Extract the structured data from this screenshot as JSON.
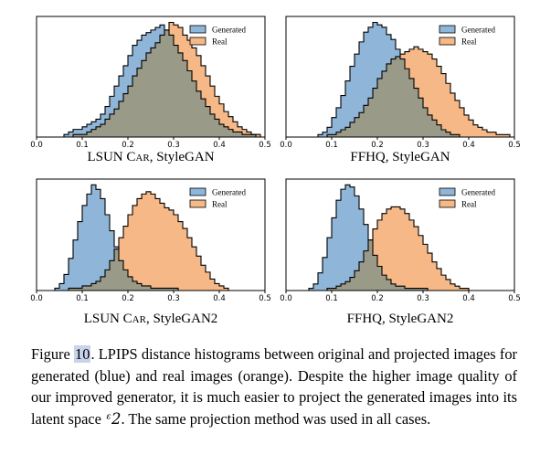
{
  "colors": {
    "generated": "#8fb6d8",
    "real": "#f5b886",
    "overlap": "#9a9a88",
    "edge": "#000000"
  },
  "legend": {
    "generated": "Generated",
    "real": "Real"
  },
  "caption": {
    "figure_label": "Figure",
    "figure_number": "10",
    "text": ". LPIPS distance histograms between original and projected images for generated (blue) and real images (orange). Despite the higher image quality of our improved generator, it is much easier to project the generated images into its latent space ",
    "math_symbol": "ᵋ2",
    "text_end": ". The same projection method was used in all cases."
  },
  "chart_data": [
    {
      "type": "bar",
      "subtitle_pre": "LSUN ",
      "subtitle_sc": "Car",
      "subtitle_post": ", StyleGAN",
      "xlim": [
        0,
        0.5
      ],
      "xticks": [
        "0.0",
        "0.1",
        "0.2",
        "0.3",
        "0.4",
        "0.5"
      ],
      "bin_width": 0.01,
      "x_start": 0.04,
      "series": [
        {
          "name": "Generated",
          "values": [
            0,
            0,
            1,
            2,
            3,
            3,
            4,
            5,
            6,
            7,
            9,
            12,
            16,
            20,
            24,
            28,
            32,
            36,
            38,
            40,
            41,
            42,
            43,
            44,
            42,
            40,
            36,
            33,
            30,
            26,
            22,
            18,
            15,
            12,
            9,
            7,
            5,
            4,
            3,
            2,
            2,
            1,
            1,
            1,
            0,
            0
          ]
        },
        {
          "name": "Real",
          "values": [
            0,
            0,
            0,
            0,
            1,
            1,
            1,
            2,
            3,
            4,
            5,
            7,
            9,
            11,
            14,
            17,
            20,
            24,
            27,
            30,
            33,
            35,
            37,
            40,
            42,
            45,
            44,
            43,
            40,
            38,
            35,
            32,
            28,
            24,
            20,
            16,
            13,
            10,
            8,
            6,
            4,
            3,
            2,
            1,
            1,
            0
          ]
        }
      ]
    },
    {
      "type": "bar",
      "subtitle_pre": "FFHQ, StyleGAN",
      "subtitle_sc": "",
      "subtitle_post": "",
      "xlim": [
        0,
        0.5
      ],
      "xticks": [
        "0.0",
        "0.1",
        "0.2",
        "0.3",
        "0.4",
        "0.5"
      ],
      "bin_width": 0.01,
      "x_start": 0.04,
      "series": [
        {
          "name": "Generated",
          "values": [
            0,
            0,
            0,
            1,
            2,
            4,
            8,
            12,
            17,
            23,
            29,
            34,
            39,
            43,
            45,
            47,
            46,
            45,
            42,
            40,
            36,
            32,
            28,
            24,
            20,
            16,
            12,
            9,
            7,
            5,
            3,
            2,
            1,
            1,
            0,
            0,
            0,
            0,
            0,
            0,
            0,
            0,
            0,
            0,
            0,
            0
          ]
        },
        {
          "name": "Real",
          "values": [
            0,
            0,
            0,
            0,
            0,
            1,
            1,
            2,
            3,
            4,
            6,
            8,
            10,
            13,
            16,
            20,
            24,
            27,
            30,
            32,
            33,
            34,
            35,
            36,
            37,
            36,
            35,
            34,
            32,
            29,
            26,
            22,
            18,
            15,
            12,
            9,
            7,
            5,
            4,
            3,
            2,
            2,
            1,
            1,
            1,
            0
          ]
        }
      ]
    },
    {
      "type": "bar",
      "subtitle_pre": "LSUN ",
      "subtitle_sc": "Car",
      "subtitle_post": ", StyleGAN2",
      "xlim": [
        0,
        0.5
      ],
      "xticks": [
        "0.0",
        "0.1",
        "0.2",
        "0.3",
        "0.4",
        "0.5"
      ],
      "bin_width": 0.01,
      "x_start": 0.03,
      "series": [
        {
          "name": "Generated",
          "values": [
            0,
            1,
            3,
            7,
            14,
            22,
            30,
            37,
            42,
            46,
            44,
            40,
            33,
            26,
            19,
            13,
            9,
            6,
            4,
            3,
            2,
            2,
            1,
            1,
            1,
            1,
            1,
            1,
            0,
            0,
            0,
            0,
            0,
            0,
            0,
            0,
            0,
            0,
            0,
            0
          ]
        },
        {
          "name": "Real",
          "values": [
            0,
            0,
            0,
            0,
            1,
            1,
            1,
            2,
            2,
            3,
            4,
            6,
            9,
            13,
            18,
            23,
            28,
            33,
            37,
            40,
            42,
            43,
            42,
            40,
            38,
            36,
            35,
            33,
            30,
            27,
            23,
            19,
            15,
            11,
            8,
            5,
            3,
            2,
            1,
            0
          ]
        }
      ]
    },
    {
      "type": "bar",
      "subtitle_pre": "FFHQ, StyleGAN2",
      "subtitle_sc": "",
      "subtitle_post": "",
      "xlim": [
        0,
        0.5
      ],
      "xticks": [
        "0.0",
        "0.1",
        "0.2",
        "0.3",
        "0.4",
        "0.5"
      ],
      "bin_width": 0.01,
      "x_start": 0.04,
      "series": [
        {
          "name": "Generated",
          "values": [
            0,
            1,
            3,
            8,
            15,
            24,
            33,
            41,
            46,
            48,
            47,
            43,
            37,
            30,
            23,
            16,
            11,
            7,
            5,
            3,
            2,
            2,
            1,
            1,
            1,
            1,
            1,
            0,
            0,
            0,
            0,
            0,
            0,
            0,
            0,
            0,
            0,
            0,
            0,
            0,
            0
          ]
        },
        {
          "name": "Real",
          "values": [
            0,
            0,
            0,
            0,
            0,
            1,
            1,
            2,
            3,
            4,
            6,
            9,
            13,
            18,
            23,
            28,
            32,
            35,
            37,
            38,
            38,
            37,
            35,
            32,
            29,
            25,
            21,
            17,
            13,
            10,
            7,
            5,
            3,
            2,
            1,
            1,
            0,
            0,
            0,
            0,
            0
          ]
        }
      ]
    }
  ]
}
